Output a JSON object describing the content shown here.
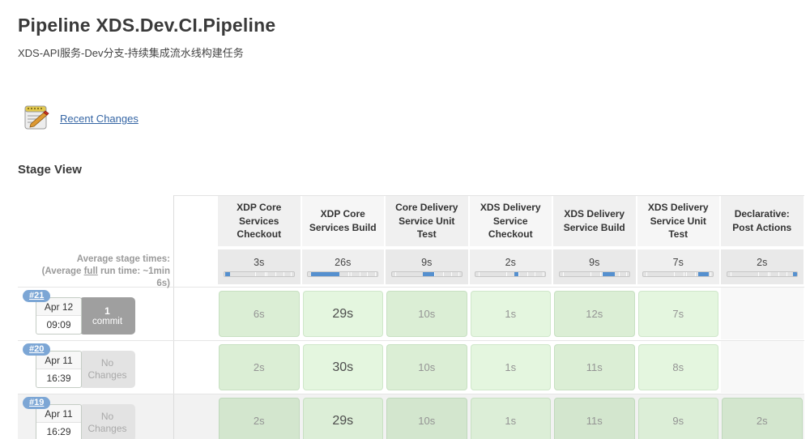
{
  "page": {
    "title": "Pipeline XDS.Dev.CI.Pipeline",
    "subtitle": "XDS-API服务-Dev分支-持续集成流水线构建任务",
    "recent_changes_label": "Recent Changes",
    "stage_view_label": "Stage View"
  },
  "stages": [
    "XDP Core Services Checkout",
    "XDP Core Services Build",
    "Core Delivery Service Unit Test",
    "XDS Delivery Service Checkout",
    "XDS Delivery Service Build",
    "XDS Delivery Service Unit Test",
    "Declarative: Post Actions"
  ],
  "average": {
    "label_line1": "Average stage times:",
    "label_line2_prefix": "(Average ",
    "label_line2_underlined": "full",
    "label_line2_suffix": " run time: ~1min",
    "label_line3": "6s)",
    "stage_times": [
      "3s",
      "26s",
      "9s",
      "2s",
      "9s",
      "7s",
      "2s"
    ],
    "bar_segments": [
      [
        1,
        9
      ],
      [
        4,
        45
      ],
      [
        45,
        61
      ],
      [
        56,
        61
      ],
      [
        62,
        79
      ],
      [
        79,
        94
      ],
      [
        95,
        100
      ]
    ],
    "bar_ticks": [
      4.5,
      44,
      58,
      61,
      74,
      85,
      96
    ],
    "bar_fill_color": "#5590cf"
  },
  "builds": [
    {
      "id": "#21",
      "date": "Apr 12",
      "time": "09:09",
      "changes": {
        "line1": "1",
        "line2": "commit",
        "kind": "commit"
      },
      "cells": [
        "6s",
        "29s",
        "10s",
        "1s",
        "12s",
        "7s",
        null
      ],
      "highlighted": false
    },
    {
      "id": "#20",
      "date": "Apr 11",
      "time": "16:39",
      "changes": {
        "line1": "No",
        "line2": "Changes",
        "kind": "none"
      },
      "cells": [
        "2s",
        "30s",
        "10s",
        "1s",
        "11s",
        "8s",
        null
      ],
      "highlighted": false
    },
    {
      "id": "#19",
      "date": "Apr 11",
      "time": "16:29",
      "changes": {
        "line1": "No",
        "line2": "Changes",
        "kind": "none"
      },
      "cells": [
        "2s",
        "29s",
        "10s",
        "1s",
        "11s",
        "9s",
        "2s"
      ],
      "highlighted": true
    }
  ],
  "colors": {
    "header_cell_odd": "#f0f0f0",
    "header_cell_even": "#f6f6f6",
    "success_cell": "#ddf0d8",
    "badge_blue": "#7ca6d5",
    "link_blue": "#3465a4"
  },
  "emphasized_column_index": 1
}
